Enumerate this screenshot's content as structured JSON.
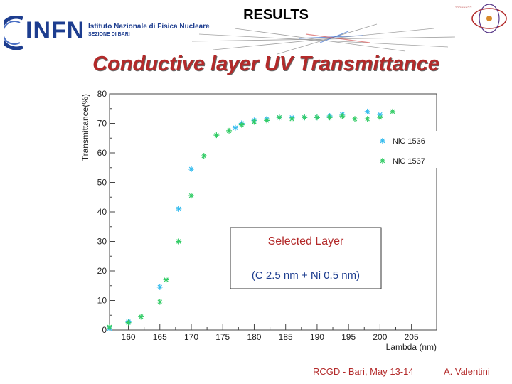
{
  "header": {
    "logo_word": "INFN",
    "institute_line1": "Istituto Nazionale di Fisica Nucleare",
    "institute_line2": "SEZIONE DI BARI",
    "slide_title": "RESULTS"
  },
  "main_title": "Conductive layer UV Transmittance",
  "annotation": {
    "line1": "Selected Layer",
    "line2": "(C 2.5 nm + Ni 0.5 nm)"
  },
  "footer": {
    "left": "RCGD  - Bari, May 13-14",
    "right": "A. Valentini"
  },
  "colors": {
    "series1": "#33bbee",
    "series2": "#33cc66",
    "title_red": "#b32a2a",
    "infn_blue": "#1d3d8f"
  },
  "chart_data": {
    "type": "scatter",
    "title": "",
    "xlabel": "Lambda (nm)",
    "ylabel": "Transmittance(%)",
    "xlim": [
      157,
      209
    ],
    "ylim": [
      0,
      80
    ],
    "xticks": [
      160,
      165,
      170,
      175,
      180,
      185,
      190,
      195,
      200,
      205
    ],
    "yticks": [
      0,
      10,
      20,
      30,
      40,
      50,
      60,
      70,
      80
    ],
    "xtick_labels": [
      "160",
      "165",
      "170",
      "175",
      "180",
      "185",
      "190",
      "195",
      "200",
      "205"
    ],
    "ytick_labels": [
      "0",
      "10",
      "20",
      "30",
      "40",
      "50",
      "60",
      "70",
      "80"
    ],
    "grid": false,
    "legend_position": "top-right",
    "series": [
      {
        "name": "NiC 1536",
        "x": [
          157,
          160,
          165,
          168,
          170,
          177,
          178,
          180,
          182,
          184,
          186,
          188,
          190,
          192,
          194,
          198,
          200
        ],
        "y": [
          0.5,
          2.8,
          14.5,
          41,
          54.5,
          68.5,
          70,
          71,
          71.5,
          72,
          72,
          72,
          72,
          72.5,
          73,
          74,
          73
        ]
      },
      {
        "name": "NiC 1537",
        "x": [
          157,
          160,
          162,
          165,
          166,
          168,
          170,
          172,
          174,
          176,
          178,
          180,
          182,
          184,
          186,
          188,
          190,
          192,
          194,
          196,
          198,
          200,
          202
        ],
        "y": [
          1,
          2.5,
          4.5,
          9.5,
          17,
          30,
          45.5,
          59,
          66,
          67.5,
          69.5,
          70.5,
          71,
          72,
          71.5,
          72,
          72,
          72,
          72.5,
          71.5,
          71.5,
          72,
          74
        ]
      }
    ]
  }
}
